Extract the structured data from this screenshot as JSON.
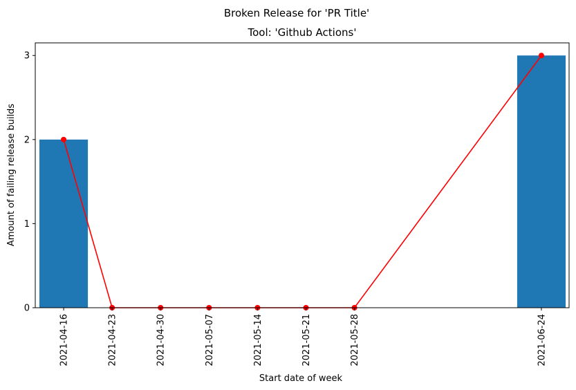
{
  "chart_data": {
    "type": "bar",
    "title": "Broken Release for 'PR Title'",
    "subtitle": "Tool: 'Github Actions'",
    "xlabel": "Start date of week",
    "ylabel": "Amount of failing release builds",
    "categories": [
      "2021-04-16",
      "2021-04-23",
      "2021-04-30",
      "2021-05-07",
      "2021-05-14",
      "2021-05-21",
      "2021-05-28",
      "2021-06-24"
    ],
    "bar_values": [
      2,
      null,
      null,
      null,
      null,
      null,
      null,
      3
    ],
    "line_values": [
      2,
      0,
      0,
      0,
      0,
      0,
      0,
      3
    ],
    "yticks": [
      0,
      1,
      2,
      3
    ],
    "ylim": [
      0,
      3.15
    ],
    "grid": false,
    "bar_color": "#1f77b4",
    "line_color": "#ff0000"
  }
}
